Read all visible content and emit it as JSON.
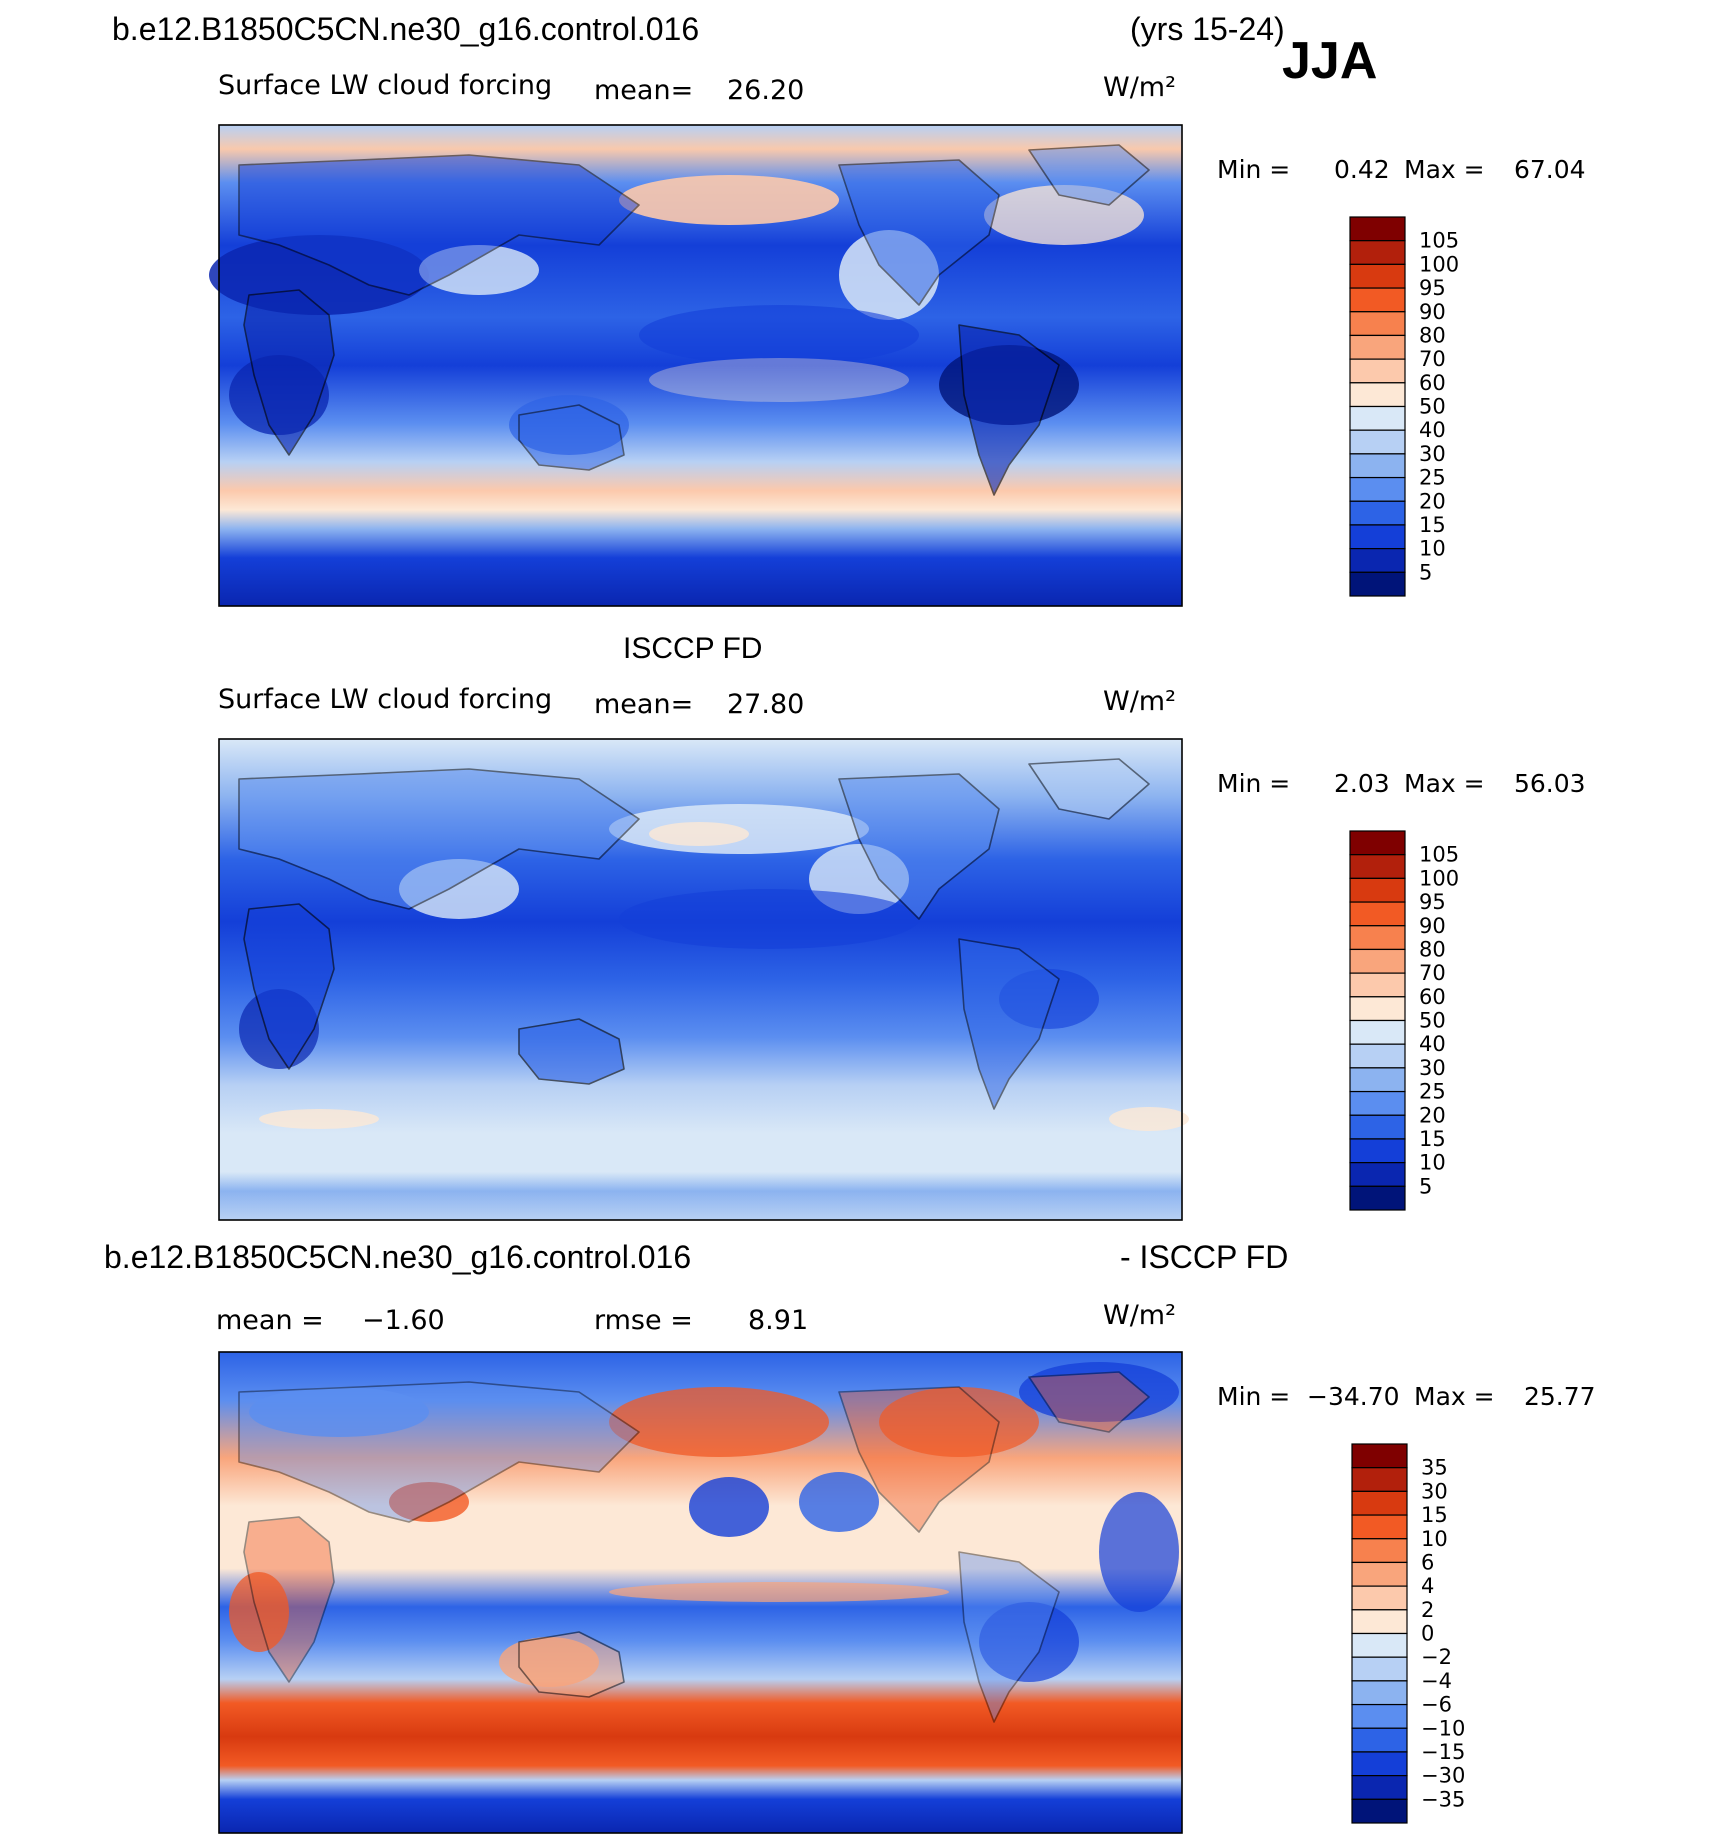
{
  "header": {
    "case": "b.e12.B1850C5CN.ne30_g16.control.016",
    "years": "(yrs 15-24)",
    "season": "JJA"
  },
  "panels": [
    {
      "id": "model",
      "title": "",
      "field": "Surface LW cloud forcing",
      "mean_label": "mean=",
      "mean": "26.20",
      "units": "W/m²",
      "min_label": "Min =",
      "min": "0.42",
      "max_label": "Max =",
      "max": "67.04"
    },
    {
      "id": "obs",
      "title": "ISCCP FD",
      "field": "Surface LW cloud forcing",
      "mean_label": "mean=",
      "mean": "27.80",
      "units": "W/m²",
      "min_label": "Min =",
      "min": "2.03",
      "max_label": "Max =",
      "max": "56.03"
    },
    {
      "id": "diff",
      "title_left": "b.e12.B1850C5CN.ne30_g16.control.016",
      "title_right": "- ISCCP FD",
      "mean_label": "mean =",
      "mean": "−1.60",
      "rmse_label": "rmse =",
      "rmse": "8.91",
      "units": "W/m²",
      "min_label": "Min =",
      "min": "−34.70",
      "max_label": "Max =",
      "max": "25.77"
    }
  ],
  "legends": {
    "field": {
      "labels": [
        "105",
        "100",
        "95",
        "90",
        "80",
        "70",
        "60",
        "50",
        "40",
        "30",
        "25",
        "20",
        "15",
        "10",
        "5"
      ],
      "colors": [
        "#7f0000",
        "#b2200c",
        "#d83a10",
        "#f25a24",
        "#f7814e",
        "#f9a57c",
        "#fcc9ac",
        "#fde8d6",
        "#d9e8f7",
        "#b7d0f4",
        "#8cb3f0",
        "#5b8ef0",
        "#2d63e6",
        "#143fd8",
        "#0a26b0",
        "#001479"
      ]
    },
    "diff": {
      "labels": [
        "35",
        "30",
        "15",
        "10",
        "6",
        "4",
        "2",
        "0",
        "−2",
        "−4",
        "−6",
        "−10",
        "−15",
        "−30",
        "−35"
      ],
      "colors": [
        "#7f0000",
        "#b2200c",
        "#d83a10",
        "#f25a24",
        "#f7814e",
        "#f9a57c",
        "#fcc9ac",
        "#fde8d6",
        "#d9e8f7",
        "#b7d0f4",
        "#8cb3f0",
        "#5b8ef0",
        "#2d63e6",
        "#143fd8",
        "#0a26b0",
        "#001479"
      ]
    }
  }
}
